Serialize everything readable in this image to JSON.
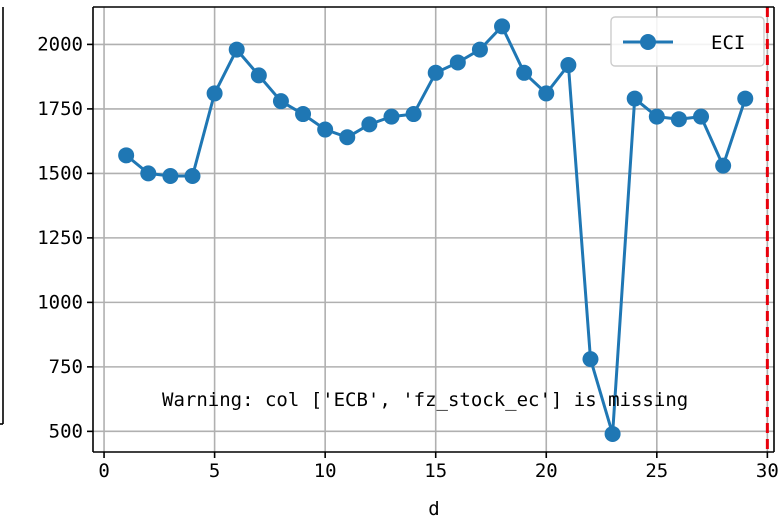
{
  "chart_data": {
    "type": "line",
    "title": "",
    "xlabel": "d",
    "ylabel": "",
    "xlim": [
      -0.5,
      30.3
    ],
    "ylim": [
      420,
      2145
    ],
    "grid": true,
    "legend_placement": "top-right",
    "x_ticks": [
      0,
      5,
      10,
      15,
      20,
      25,
      30
    ],
    "y_ticks": [
      500,
      750,
      1000,
      1250,
      1500,
      1750,
      2000
    ],
    "vline": {
      "x": 30,
      "style": "dashed",
      "color": "#e8000b"
    },
    "series": [
      {
        "name": "ECI",
        "color": "#1f77b4",
        "marker": "circle",
        "x": [
          1,
          2,
          3,
          4,
          5,
          6,
          7,
          8,
          9,
          10,
          11,
          12,
          13,
          14,
          15,
          16,
          17,
          18,
          19,
          20,
          21,
          22,
          23,
          24,
          25,
          26,
          27,
          28,
          29
        ],
        "y": [
          1570,
          1500,
          1490,
          1490,
          1810,
          1980,
          1880,
          1780,
          1730,
          1670,
          1640,
          1690,
          1720,
          1730,
          1890,
          1930,
          1980,
          2070,
          1890,
          1810,
          1920,
          780,
          490,
          1790,
          1720,
          1710,
          1720,
          1530,
          1790
        ]
      }
    ],
    "annotation": "Warning: col ['ECB', 'fz_stock_ec'] is missing"
  }
}
